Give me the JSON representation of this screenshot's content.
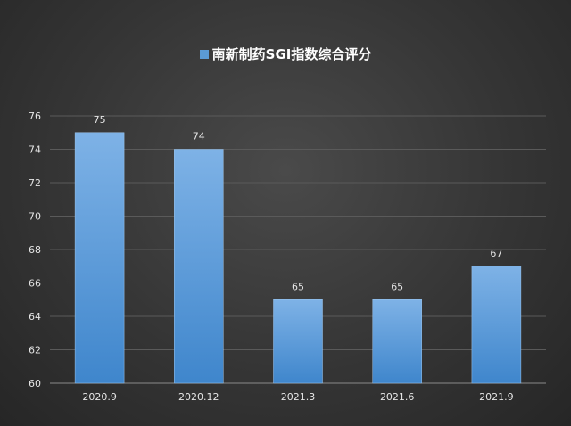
{
  "chart_data": {
    "type": "bar",
    "title": "南新制药SGI指数综合评分",
    "legend": "top",
    "categories": [
      "2020.9",
      "2020.12",
      "2021.3",
      "2021.6",
      "2021.9"
    ],
    "series": [
      {
        "name": "南新制药SGI指数综合评分",
        "values": [
          75,
          74,
          65,
          65,
          67
        ]
      }
    ],
    "ylim": [
      60,
      76
    ],
    "yticks": [
      60,
      62,
      64,
      66,
      68,
      70,
      72,
      74,
      76
    ],
    "grid": true,
    "data_labels": true,
    "colors": {
      "bar_top": "#7eb2e6",
      "bar_bottom": "#3f86cc",
      "text": "#e6e6e6",
      "grid": "#5a5a5a"
    }
  }
}
